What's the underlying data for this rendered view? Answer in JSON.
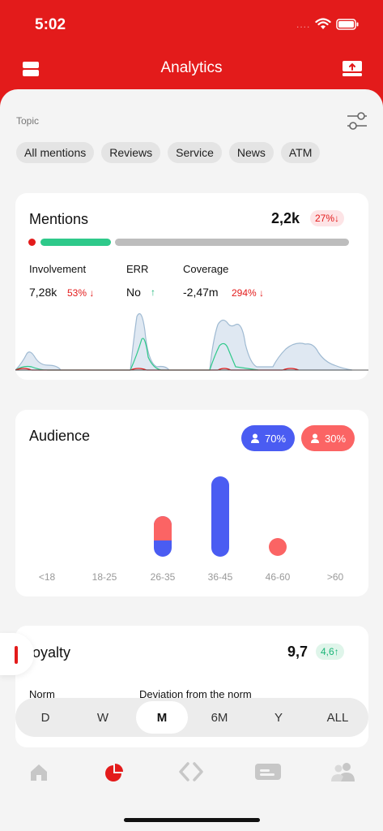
{
  "status_bar": {
    "time": "5:02",
    "dots": "...."
  },
  "header": {
    "title": "Analytics"
  },
  "topic": {
    "label": "Topic",
    "chips": [
      "All mentions",
      "Reviews",
      "Service",
      "News",
      "ATM"
    ]
  },
  "mentions": {
    "title": "Mentions",
    "value": "2,2k",
    "badge": "27%↓",
    "progress": 0.22,
    "metrics": [
      {
        "label": "Involvement",
        "value": "7,28k",
        "delta": "53% ↓"
      },
      {
        "label": "ERR",
        "value": "No",
        "delta": "↑"
      },
      {
        "label": "Coverage",
        "value": "-2,47m",
        "delta": "294% ↓"
      }
    ]
  },
  "audience": {
    "title": "Audience",
    "male_pct": "70%",
    "female_pct": "30%",
    "age_groups": [
      "<18",
      "18-25",
      "26-35",
      "36-45",
      "46-60",
      ">60"
    ]
  },
  "loyalty": {
    "title": "Loyalty",
    "value": "9,7",
    "badge": "4,6↑",
    "norm_label": "Norm",
    "deviation_label": "Deviation from the norm"
  },
  "periods": [
    "D",
    "W",
    "M",
    "6M",
    "Y",
    "ALL"
  ],
  "active_period": "M",
  "colors": {
    "brand": "#e31b1b",
    "green": "#2ec98a",
    "blue": "#4a5cf2",
    "coral": "#fb6464"
  }
}
